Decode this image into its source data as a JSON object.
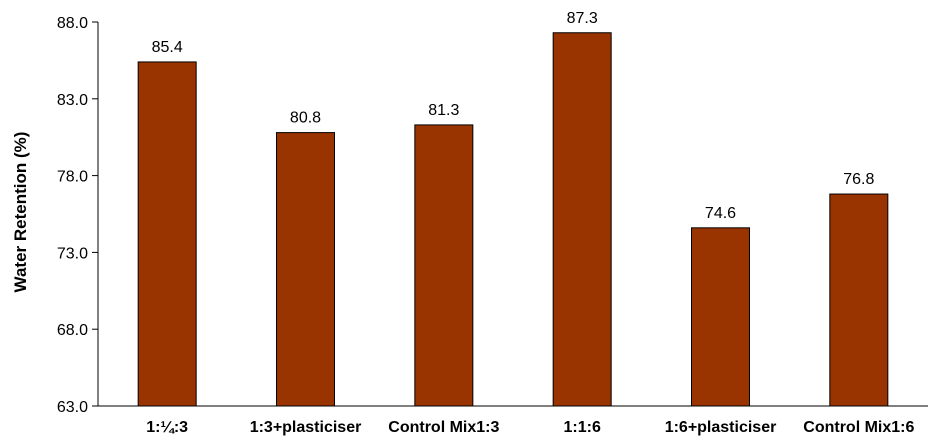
{
  "chart_data": {
    "type": "bar",
    "title": "",
    "xlabel": "",
    "ylabel": "Water Retention (%)",
    "ylim": [
      63.0,
      88.0
    ],
    "yticks": [
      "63.0",
      "68.0",
      "73.0",
      "78.0",
      "83.0",
      "88.0"
    ],
    "categories": [
      "1:¼:3",
      "1:3+plasticiser",
      "Control Mix1:3",
      "1:1:6",
      "1:6+plasticiser",
      "Control Mix1:6"
    ],
    "values": [
      85.4,
      80.8,
      81.3,
      87.3,
      74.6,
      76.8
    ],
    "value_labels": [
      "85.4",
      "80.8",
      "81.3",
      "87.3",
      "74.6",
      "76.8"
    ],
    "bar_color": "#993300",
    "grid": false,
    "legend": "none"
  }
}
